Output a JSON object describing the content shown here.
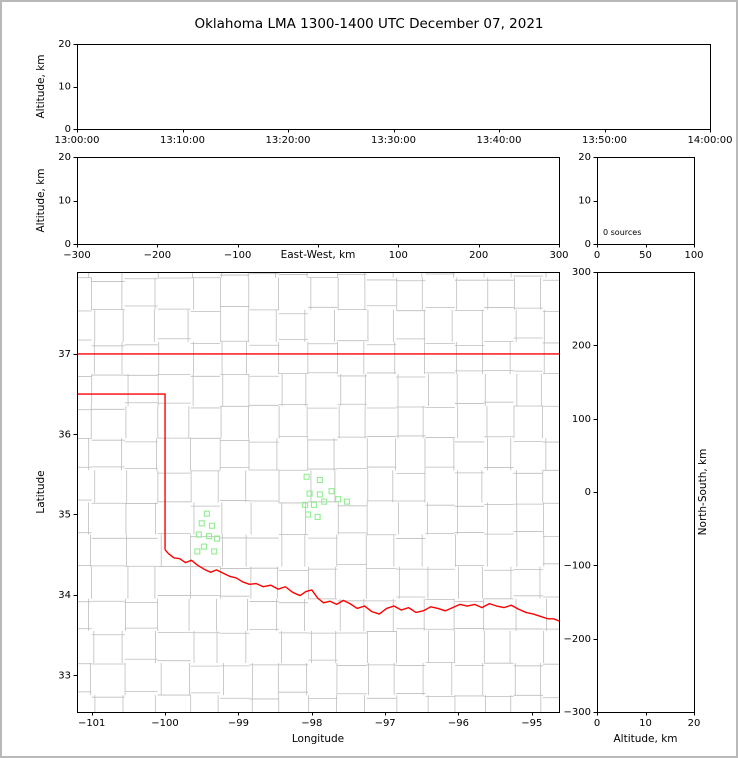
{
  "title": "Oklahoma LMA 1300-1400 UTC December 07, 2021",
  "colors": {
    "axis": "#000000",
    "state_border": "#ff0000",
    "county_lines": "#bdbdbd",
    "stations": "#90ee90",
    "figure_frame": "#b9b9b9",
    "background": "#ffffff"
  },
  "chart_data": [
    {
      "id": "time_height",
      "type": "scatter",
      "title": "",
      "xlabel": "",
      "ylabel": "Altitude, km",
      "xlim": [
        0,
        3600
      ],
      "ylim": [
        0,
        20
      ],
      "xticks": {
        "values": [
          0,
          600,
          1200,
          1800,
          2400,
          3000,
          3600
        ],
        "labels": [
          "13:00:00",
          "13:10:00",
          "13:20:00",
          "13:30:00",
          "13:40:00",
          "13:50:00",
          "14:00:00"
        ]
      },
      "yticks": {
        "values": [
          0,
          10,
          20
        ],
        "labels": [
          "0",
          "10",
          "20"
        ]
      },
      "series": []
    },
    {
      "id": "ew_height",
      "type": "scatter",
      "title": "",
      "xlabel": "East-West, km",
      "xlabel_inline": true,
      "ylabel": "Altitude, km",
      "xlim": [
        -300,
        300
      ],
      "ylim": [
        0,
        20
      ],
      "xticks": {
        "values": [
          -300,
          -200,
          -100,
          0,
          100,
          200,
          300
        ],
        "labels": [
          "−300",
          "−200",
          "−100",
          "",
          "100",
          "200",
          "300"
        ]
      },
      "yticks": {
        "values": [
          0,
          10,
          20
        ],
        "labels": [
          "0",
          "10",
          "20"
        ]
      },
      "series": []
    },
    {
      "id": "alt_histogram",
      "type": "line",
      "title": "",
      "xlabel": "",
      "ylabel": "",
      "annotation": "0 sources",
      "xlim": [
        0,
        100
      ],
      "ylim": [
        0,
        20
      ],
      "xticks": {
        "values": [
          0,
          50,
          100
        ],
        "labels": [
          "0",
          "50",
          "100"
        ]
      },
      "yticks": {
        "values": [
          0,
          10,
          20
        ],
        "labels": [
          "0",
          "10",
          "20"
        ]
      },
      "series": []
    },
    {
      "id": "plan_view",
      "type": "scatter",
      "title": "",
      "xlabel": "Longitude",
      "ylabel": "Latitude",
      "xlim": [
        -101.2,
        -94.63
      ],
      "ylim": [
        32.54,
        38.02
      ],
      "xticks": {
        "values": [
          -101,
          -100,
          -99,
          -98,
          -97,
          -96,
          -95
        ],
        "labels": [
          "−101",
          "−100",
          "−99",
          "−98",
          "−97",
          "−96",
          "−95"
        ]
      },
      "yticks": {
        "values": [
          33,
          34,
          35,
          36,
          37
        ],
        "labels": [
          "33",
          "34",
          "35",
          "36",
          "37"
        ]
      },
      "series": [
        {
          "name": "lma-stations",
          "marker": "open-square",
          "color": "#90ee90",
          "points": [
            [
              -98.07,
              35.47
            ],
            [
              -97.89,
              35.43
            ],
            [
              -97.73,
              35.29
            ],
            [
              -98.03,
              35.26
            ],
            [
              -97.89,
              35.25
            ],
            [
              -98.09,
              35.12
            ],
            [
              -97.97,
              35.12
            ],
            [
              -97.83,
              35.16
            ],
            [
              -97.64,
              35.19
            ],
            [
              -97.52,
              35.16
            ],
            [
              -98.05,
              35.0
            ],
            [
              -97.92,
              34.97
            ],
            [
              -99.43,
              35.01
            ],
            [
              -99.5,
              34.89
            ],
            [
              -99.36,
              34.86
            ],
            [
              -99.54,
              34.75
            ],
            [
              -99.4,
              34.73
            ],
            [
              -99.29,
              34.7
            ],
            [
              -99.47,
              34.6
            ],
            [
              -99.56,
              34.54
            ],
            [
              -99.33,
              34.54
            ]
          ]
        }
      ],
      "overlays": {
        "county_grid": {
          "color": "#bdbdbd",
          "jitter": 0.1,
          "lons": [
            -101.0,
            -100.55,
            -100.1,
            -99.65,
            -99.25,
            -98.85,
            -98.45,
            -98.05,
            -97.65,
            -97.25,
            -96.85,
            -96.45,
            -96.05,
            -95.65,
            -95.25,
            -94.85
          ],
          "lats": [
            32.75,
            33.15,
            33.55,
            33.95,
            34.35,
            34.75,
            35.15,
            35.55,
            35.95,
            36.35,
            36.75,
            37.15,
            37.55,
            37.95
          ]
        },
        "state_border": {
          "color": "#ff0000",
          "lines": [
            [
              [
                -101.21,
                37.0
              ],
              [
                -94.62,
                37.0
              ]
            ],
            [
              [
                -101.21,
                36.5
              ],
              [
                -100.0,
                36.5
              ],
              [
                -100.0,
                34.56
              ]
            ],
            [
              [
                -100.0,
                34.56
              ],
              [
                -99.95,
                34.51
              ],
              [
                -99.88,
                34.46
              ],
              [
                -99.8,
                34.45
              ],
              [
                -99.72,
                34.4
              ],
              [
                -99.64,
                34.43
              ],
              [
                -99.56,
                34.37
              ],
              [
                -99.47,
                34.32
              ],
              [
                -99.38,
                34.28
              ],
              [
                -99.3,
                34.31
              ],
              [
                -99.21,
                34.27
              ],
              [
                -99.12,
                34.23
              ],
              [
                -99.03,
                34.21
              ],
              [
                -98.94,
                34.16
              ],
              [
                -98.85,
                34.13
              ],
              [
                -98.76,
                34.14
              ],
              [
                -98.66,
                34.1
              ],
              [
                -98.56,
                34.12
              ],
              [
                -98.46,
                34.07
              ],
              [
                -98.36,
                34.1
              ],
              [
                -98.26,
                34.03
              ],
              [
                -98.16,
                33.99
              ],
              [
                -98.08,
                34.04
              ],
              [
                -98.0,
                34.06
              ],
              [
                -97.92,
                33.96
              ],
              [
                -97.84,
                33.9
              ],
              [
                -97.75,
                33.92
              ],
              [
                -97.66,
                33.88
              ],
              [
                -97.57,
                33.93
              ],
              [
                -97.48,
                33.89
              ],
              [
                -97.38,
                33.83
              ],
              [
                -97.28,
                33.86
              ],
              [
                -97.18,
                33.79
              ],
              [
                -97.08,
                33.76
              ],
              [
                -96.98,
                33.83
              ],
              [
                -96.88,
                33.86
              ],
              [
                -96.78,
                33.81
              ],
              [
                -96.68,
                33.84
              ],
              [
                -96.58,
                33.78
              ],
              [
                -96.48,
                33.8
              ],
              [
                -96.38,
                33.85
              ],
              [
                -96.28,
                33.83
              ],
              [
                -96.18,
                33.8
              ],
              [
                -96.08,
                33.84
              ],
              [
                -95.98,
                33.88
              ],
              [
                -95.88,
                33.86
              ],
              [
                -95.78,
                33.88
              ],
              [
                -95.68,
                33.84
              ],
              [
                -95.58,
                33.89
              ],
              [
                -95.48,
                33.86
              ],
              [
                -95.38,
                33.84
              ],
              [
                -95.28,
                33.87
              ],
              [
                -95.18,
                33.82
              ],
              [
                -95.08,
                33.78
              ],
              [
                -94.98,
                33.76
              ],
              [
                -94.88,
                33.73
              ],
              [
                -94.78,
                33.7
              ],
              [
                -94.7,
                33.7
              ],
              [
                -94.62,
                33.67
              ]
            ]
          ]
        }
      }
    },
    {
      "id": "ns_height",
      "type": "scatter",
      "title": "",
      "xlabel": "Altitude, km",
      "ylabel": "North-South, km",
      "ylabel_side": "right",
      "xlim": [
        0,
        20
      ],
      "ylim": [
        -300,
        300
      ],
      "xticks": {
        "values": [
          0,
          10,
          20
        ],
        "labels": [
          "0",
          "10",
          "20"
        ]
      },
      "yticks": {
        "values": [
          -300,
          -200,
          -100,
          0,
          100,
          200,
          300
        ],
        "labels": [
          "−300",
          "−200",
          "−100",
          "0",
          "100",
          "200",
          "300"
        ]
      },
      "series": []
    }
  ]
}
